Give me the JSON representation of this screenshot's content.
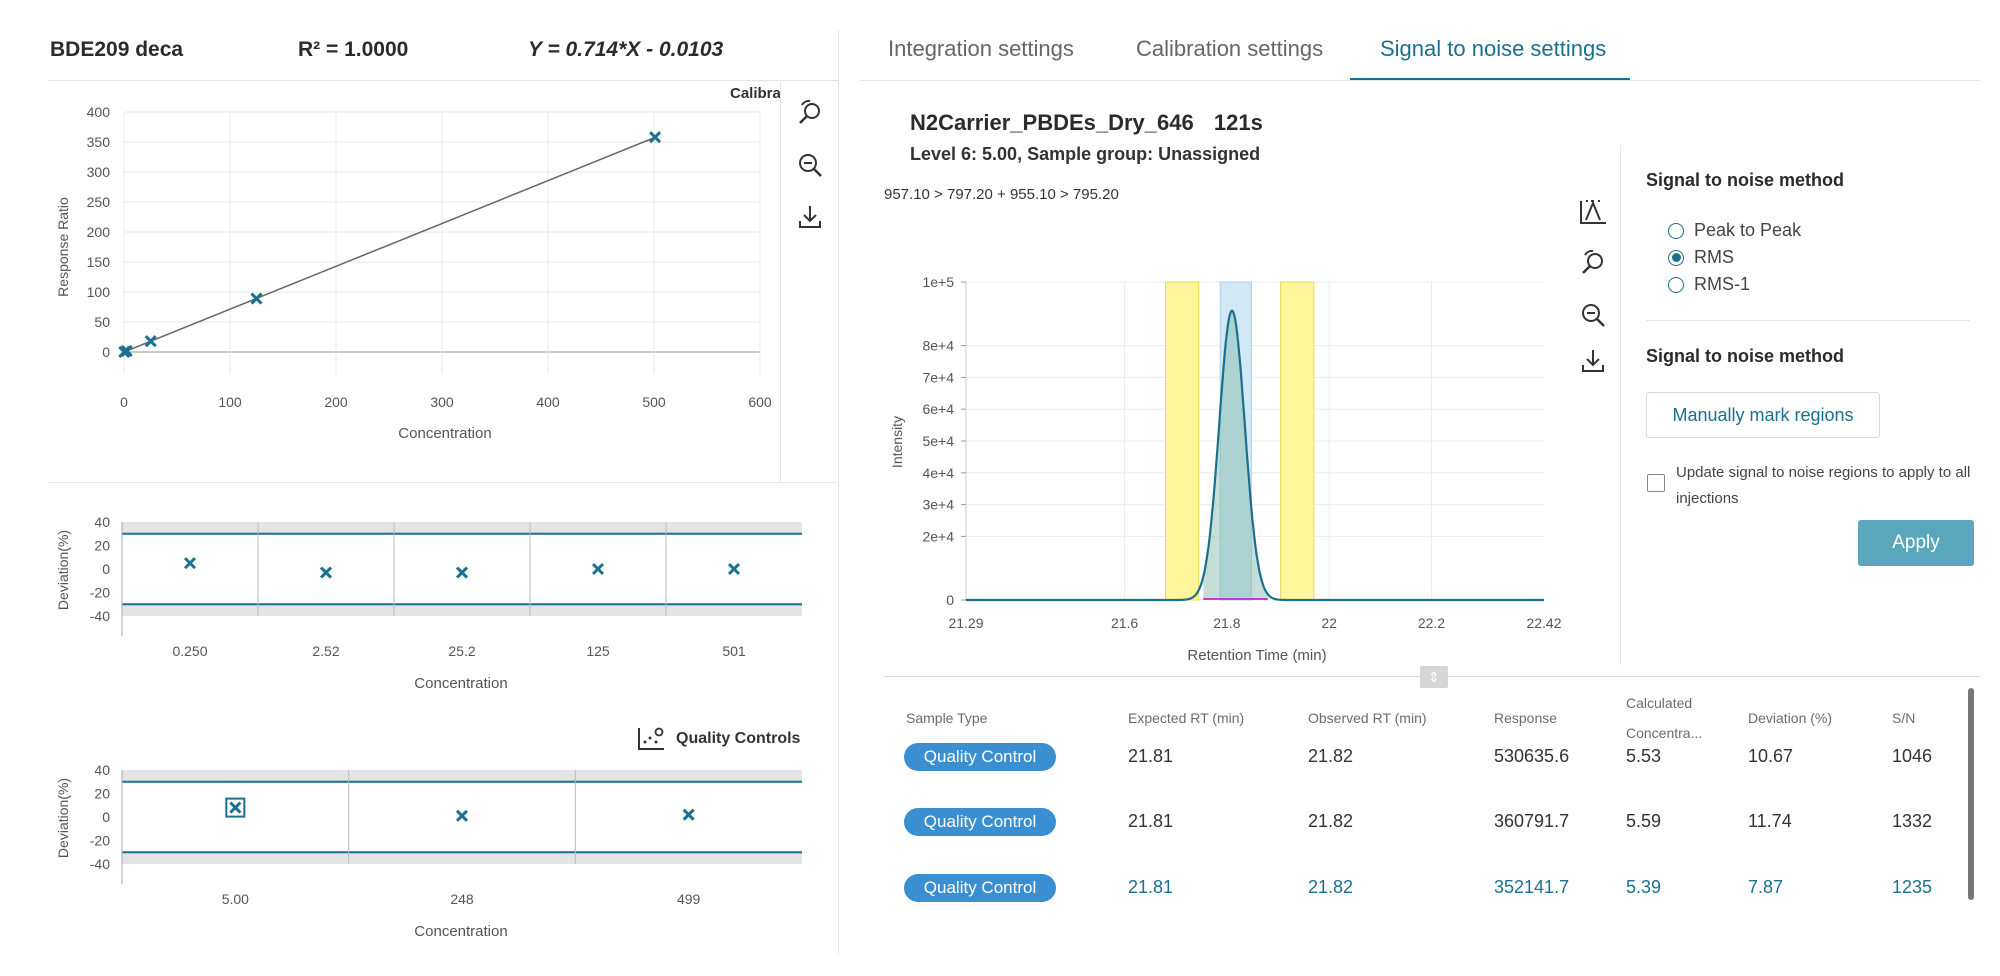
{
  "left": {
    "compound": "BDE209 deca",
    "r2": "R² = 1.0000",
    "equation": "Y = 0.714*X - 0.0103"
  },
  "calibration_chart": {
    "legend": "Calibrators",
    "xlabel": "Concentration",
    "ylabel": "Response Ratio",
    "x_ticks": [
      "0",
      "100",
      "200",
      "300",
      "400",
      "500",
      "600"
    ],
    "y_ticks": [
      "400",
      "350",
      "300",
      "250",
      "200",
      "150",
      "100",
      "50",
      "0"
    ]
  },
  "deviation_chart_cal": {
    "ylabel": "Deviation(%)",
    "xlabel": "Concentration",
    "y_ticks": [
      "40",
      "20",
      "0",
      "-20",
      "-40"
    ],
    "categories": [
      "0.250",
      "2.52",
      "25.2",
      "125",
      "501"
    ]
  },
  "deviation_chart_qc": {
    "legend": "Quality Controls",
    "ylabel": "Deviation(%)",
    "xlabel": "Concentration",
    "y_ticks": [
      "40",
      "20",
      "0",
      "-20",
      "-40"
    ],
    "categories": [
      "5.00",
      "248",
      "499"
    ]
  },
  "tabs": [
    "Integration settings",
    "Calibration settings",
    "Signal to noise settings"
  ],
  "right": {
    "sample": "N2Carrier_PBDEs_Dry_646",
    "time": "121s",
    "level": "Level 6: 5.00, Sample group: Unassigned",
    "transition": "957.10 > 797.20 + 955.10 > 795.20"
  },
  "chromatogram": {
    "xlabel": "Retention Time (min)",
    "ylabel": "Intensity",
    "x_ticks": [
      "21.29",
      "21.6",
      "21.8",
      "22",
      "22.2",
      "22.42"
    ],
    "y_ticks": [
      "1e+5",
      "8e+4",
      "7e+4",
      "6e+4",
      "5e+4",
      "4e+4",
      "3e+4",
      "2e+4",
      "0"
    ]
  },
  "sn_settings": {
    "method_title": "Signal to noise method",
    "options": [
      "Peak to Peak",
      "RMS",
      "RMS-1"
    ],
    "selected": "RMS",
    "method_title2": "Signal to noise method",
    "manual_button": "Manually mark regions",
    "checkbox_label": "Update signal to noise regions to apply to all injections",
    "apply_button": "Apply"
  },
  "table": {
    "headers": [
      "Sample Type",
      "Expected RT (min)",
      "Observed RT (min)",
      "Response",
      "Calculated Concentra...",
      "Deviation (%)",
      "S/N"
    ],
    "rows": [
      [
        "Quality Control",
        "21.81",
        "21.82",
        "530635.6",
        "5.53",
        "10.67",
        "1046"
      ],
      [
        "Quality Control",
        "21.81",
        "21.82",
        "360791.7",
        "5.59",
        "11.74",
        "1332"
      ],
      [
        "Quality Control",
        "21.81",
        "21.82",
        "352141.7",
        "5.39",
        "7.87",
        "1235"
      ]
    ]
  },
  "colors": {
    "accent": "#1b6f8f",
    "pill": "#3a8fd1",
    "apply": "#5aa7bd",
    "noise_region": "#fff59a",
    "peak_region": "#cfe6f5"
  },
  "chart_data": [
    {
      "type": "scatter",
      "title": "",
      "xlabel": "Concentration",
      "ylabel": "Response Ratio",
      "xlim": [
        0,
        600
      ],
      "ylim": [
        0,
        400
      ],
      "series": [
        {
          "name": "Calibrators",
          "x": [
            0.25,
            2.52,
            25.2,
            125,
            501
          ],
          "y": [
            0.2,
            1.8,
            18,
            89,
            358
          ]
        }
      ],
      "fit_line": {
        "x": [
          0,
          501
        ],
        "y": [
          -0.0103,
          357.7
        ]
      }
    },
    {
      "type": "scatter",
      "xlabel": "Concentration",
      "ylabel": "Deviation(%)",
      "ylim": [
        -40,
        40
      ],
      "categories": [
        "0.250",
        "2.52",
        "25.2",
        "125",
        "501"
      ],
      "values": [
        5,
        -3,
        -3,
        0,
        0
      ]
    },
    {
      "type": "scatter",
      "xlabel": "Concentration",
      "ylabel": "Deviation(%)",
      "ylim": [
        -40,
        40
      ],
      "categories": [
        "5.00",
        "248",
        "499"
      ],
      "values": [
        8,
        1,
        2
      ]
    },
    {
      "type": "line",
      "xlabel": "Retention Time (min)",
      "ylabel": "Intensity",
      "xlim": [
        21.29,
        22.42
      ],
      "ylim": [
        0,
        100000
      ],
      "peak": {
        "apex_x": 21.81,
        "apex_y": 91000,
        "width": 0.025
      }
    }
  ]
}
